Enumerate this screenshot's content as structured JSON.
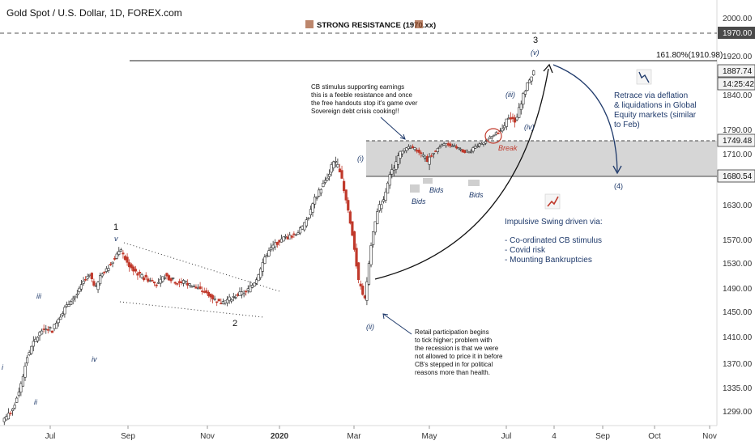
{
  "header": {
    "title": "Gold Spot / U.S. Dollar, 1D, FOREX.com"
  },
  "chart_data": {
    "type": "candlestick",
    "title": "Gold Spot / U.S. Dollar, 1D, FOREX.com",
    "x_ticks": [
      "Jul",
      "Sep",
      "Nov",
      "2020",
      "Mar",
      "May",
      "Jul",
      "4",
      "Sep",
      "Oct",
      "Nov"
    ],
    "y_ticks": [
      2000.0,
      1920.0,
      1840.0,
      1790.0,
      1710.0,
      1630.0,
      1570.0,
      1530.0,
      1490.0,
      1450.0,
      1410.0,
      1370.0,
      1335.0,
      1299.0
    ],
    "y_tick_labels": [
      "2000.00",
      "1920.00",
      "1840.00",
      "1790.00",
      "1710.00",
      "1630.00",
      "1570.00",
      "1530.00",
      "1490.00",
      "1450.00",
      "1410.00",
      "1370.00",
      "1335.00",
      "1299.00"
    ],
    "price_labels": {
      "resistance": "1970.00",
      "last_price": "1887.74",
      "countdown": "14:25:42",
      "zone_top": "1749.48",
      "zone_bottom": "1680.54"
    },
    "close_series": [
      1285,
      1292,
      1310,
      1340,
      1380,
      1400,
      1415,
      1425,
      1420,
      1440,
      1455,
      1470,
      1480,
      1500,
      1510,
      1490,
      1515,
      1525,
      1540,
      1550,
      1530,
      1520,
      1510,
      1505,
      1500,
      1495,
      1510,
      1505,
      1498,
      1500,
      1495,
      1490,
      1485,
      1480,
      1470,
      1465,
      1470,
      1475,
      1480,
      1483,
      1495,
      1510,
      1540,
      1555,
      1565,
      1572,
      1575,
      1580,
      1590,
      1610,
      1640,
      1660,
      1680,
      1700,
      1690,
      1640,
      1580,
      1500,
      1470,
      1560,
      1620,
      1640,
      1680,
      1700,
      1720,
      1730,
      1725,
      1710,
      1700,
      1715,
      1730,
      1740,
      1735,
      1725,
      1715,
      1720,
      1735,
      1745,
      1760,
      1775,
      1790,
      1810,
      1800,
      1830,
      1860,
      1888
    ],
    "lines": {
      "resistance": 1970,
      "fib_level": 1910.98,
      "zone_top": 1749.48,
      "zone_bottom": 1680.54
    },
    "annotations": {
      "strong_resistance": "STRONG RESISTANCE (1970.xx)",
      "fib": "161.80%(1910.98)",
      "break": "Break",
      "bids1": "Bids",
      "bids2": "Bids",
      "bids3": "Bids",
      "wave_3": "3",
      "wave_v_top": "(v)",
      "wave_iii_paren": "(iii)",
      "wave_iv_paren": "(iv)",
      "wave_i_paren": "(i)",
      "wave_ii_paren": "(ii)",
      "wave_4": "(4)",
      "wave_1": "1",
      "wave_v_small": "v",
      "wave_2": "2",
      "wave_iii": "iii",
      "wave_iv": "iv",
      "wave_i": "i",
      "wave_ii": "ii",
      "cb_note": [
        "CB stimulus supporting earnings",
        "this is a feeble resistance and once",
        "the free handouts stop it's game over",
        "Sovereign debt crisis cooking!!"
      ],
      "retail_note": [
        "Retail participation begins",
        "to tick higher; problem with",
        "the recession is that we were",
        "not allowed to price it in before",
        "CB's stepped in for political",
        "reasons more than health."
      ],
      "retrace_note": [
        "Retrace via deflation",
        "& liquidations in Global",
        "Equity markets (similar",
        "to Feb)"
      ],
      "impulse_title": "Impulsive Swing driven via:",
      "impulse_items": [
        "- Co-ordinated CB stimulus",
        "- Covid risk",
        "- Mounting Bankruptcies"
      ]
    },
    "colors": {
      "up": "#2b2b2b",
      "down": "#c0392b",
      "zone": "#cfcfcf",
      "accent": "#1f3a6b",
      "resistance_label_bg": "#4a4a4a",
      "last_price_bg": "#f2f2f2"
    }
  }
}
